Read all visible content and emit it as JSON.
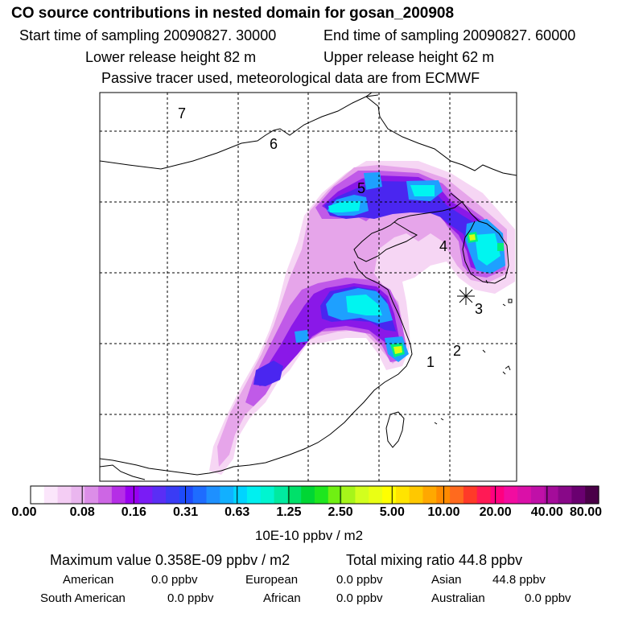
{
  "header": {
    "title": "CO  source contributions in nested domain for gosan_200908",
    "start_label": "Start time of sampling 20090827. 30000",
    "end_label": "End time of sampling 20090827. 60000",
    "lower_label": "Lower release height   82 m",
    "upper_label": "Upper release height   62 m",
    "note": "Passive tracer used, meteorological data are from ECMWF"
  },
  "map": {
    "station_markers": [
      "1",
      "2",
      "3",
      "4",
      "5",
      "6",
      "7"
    ],
    "receptor_icon": "asterisk-icon",
    "plume_colors": [
      "#f6d6f4",
      "#e6a5ea",
      "#c05ae8",
      "#8a18e8",
      "#4a26f0",
      "#1ea0ff",
      "#00f5f0",
      "#00f07c",
      "#d8ff12",
      "#ffe600"
    ]
  },
  "colorbar": {
    "labels": [
      "0.00",
      "0.08",
      "0.16",
      "0.31",
      "0.63",
      "1.25",
      "2.50",
      "5.00",
      "10.00",
      "20.00",
      "40.00",
      "80.00"
    ],
    "unit": "10E-10 ppbv / m2",
    "colors": [
      "#ffffff",
      "#fbe6fb",
      "#f4cdf4",
      "#eab6ef",
      "#dc8ee8",
      "#cd66e4",
      "#b52ee6",
      "#9800f0",
      "#7a1cf5",
      "#5a2ef5",
      "#3a3cf5",
      "#1e4bfa",
      "#1e6cff",
      "#1e90ff",
      "#12b0ff",
      "#00d4ff",
      "#00f0f0",
      "#00f5d0",
      "#00eaa0",
      "#00e06a",
      "#00d634",
      "#1ee61e",
      "#70f012",
      "#a6f51a",
      "#d2ff1e",
      "#eaff14",
      "#ffff00",
      "#ffe400",
      "#ffc800",
      "#ffa800",
      "#ff8a00",
      "#ff6a1e",
      "#ff3a28",
      "#ff1a55",
      "#ff0080",
      "#f20ca0",
      "#da10a8",
      "#c010a8",
      "#a40c9a",
      "#880888",
      "#6a0070",
      "#4a0048"
    ]
  },
  "stats": {
    "maximum": "Maximum value  0.358E-09 ppbv / m2",
    "total": "Total mixing ratio       44.8 ppbv",
    "regions": [
      {
        "name": "American",
        "value": "0.0 ppbv"
      },
      {
        "name": "European",
        "value": "0.0 ppbv"
      },
      {
        "name": "Asian",
        "value": "44.8 ppbv"
      },
      {
        "name": "South American",
        "value": "0.0 ppbv"
      },
      {
        "name": "African",
        "value": "0.0 ppbv"
      },
      {
        "name": "Australian",
        "value": "0.0 ppbv"
      }
    ]
  }
}
